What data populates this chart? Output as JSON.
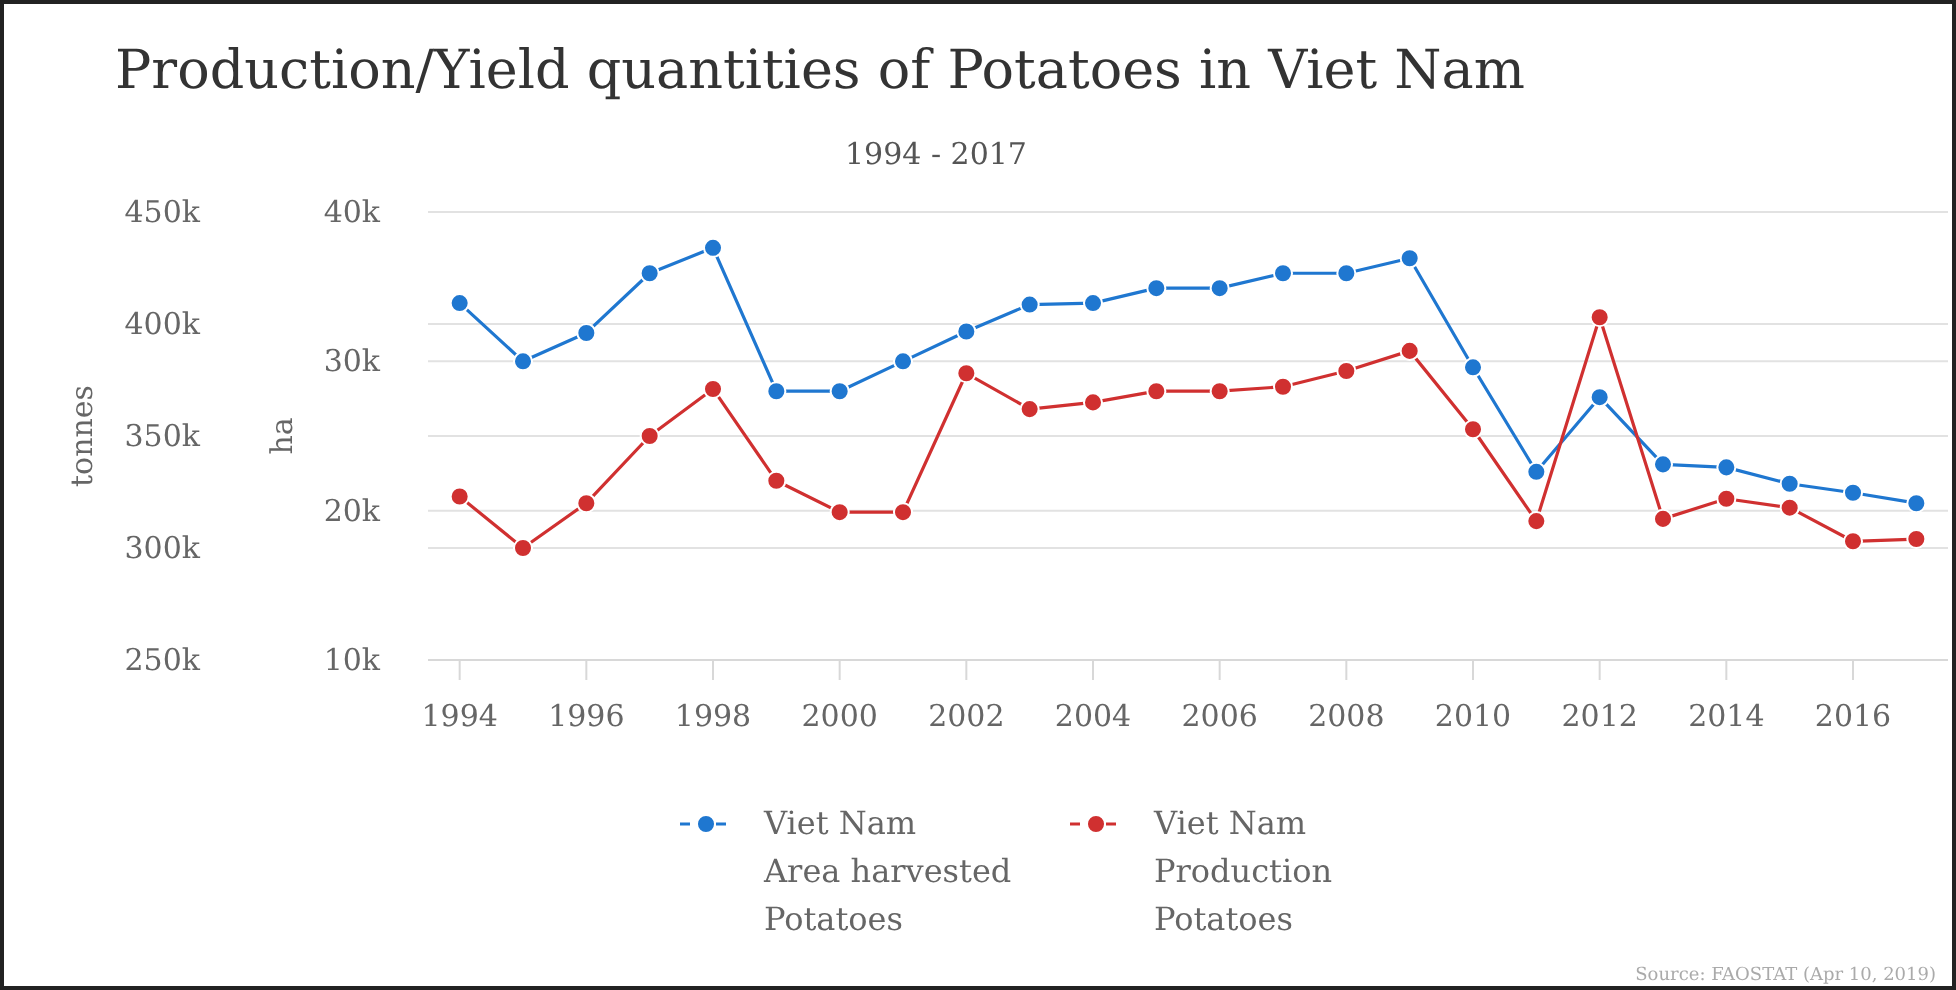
{
  "chart_data": {
    "type": "line",
    "title": "Production/Yield quantities of Potatoes in Viet Nam",
    "subtitle": "1994 - 2017",
    "ylabel": "ha",
    "y2label": "tonnes",
    "x": [
      1994,
      1995,
      1996,
      1997,
      1998,
      1999,
      2000,
      2001,
      2002,
      2003,
      2004,
      2005,
      2006,
      2007,
      2008,
      2009,
      2010,
      2011,
      2012,
      2013,
      2014,
      2015,
      2016,
      2017
    ],
    "xlim": [
      1993.5,
      2017.5
    ],
    "xticks": [
      1994,
      1996,
      1998,
      2000,
      2002,
      2004,
      2006,
      2008,
      2010,
      2012,
      2014,
      2016
    ],
    "ylim": [
      10000,
      40000
    ],
    "yticks": [
      {
        "value": 10000,
        "label": "10k"
      },
      {
        "value": 20000,
        "label": "20k"
      },
      {
        "value": 30000,
        "label": "30k"
      },
      {
        "value": 40000,
        "label": "40k"
      }
    ],
    "y2lim": [
      250000,
      450000
    ],
    "y2ticks": [
      {
        "value": 250000,
        "label": "250k"
      },
      {
        "value": 300000,
        "label": "300k"
      },
      {
        "value": 350000,
        "label": "350k"
      },
      {
        "value": 400000,
        "label": "400k"
      },
      {
        "value": 450000,
        "label": "450k"
      }
    ],
    "series": [
      {
        "name": "Viet Nam\nArea harvested\nPotatoes",
        "color": "#1f77d0",
        "values": [
          33900,
          30000,
          31900,
          35900,
          37600,
          28000,
          28000,
          30000,
          32000,
          33800,
          33900,
          34900,
          34900,
          35900,
          35900,
          36900,
          29600,
          22600,
          27600,
          23100,
          22900,
          21800,
          21200,
          20500
        ]
      },
      {
        "name": "Viet Nam\nProduction\nPotatoes",
        "color": "#d03030",
        "axis": "y2",
        "values": [
          323000,
          300000,
          320000,
          350000,
          371000,
          330000,
          316000,
          316000,
          378000,
          362000,
          365000,
          370000,
          370000,
          372000,
          379000,
          388000,
          353000,
          312000,
          403000,
          313000,
          322000,
          318000,
          303000,
          304000
        ]
      }
    ],
    "grid": "y",
    "legend": "bottom",
    "marker": "circle",
    "line_style": "solid",
    "annotations": [
      "Source: FAOSTAT (Apr 10, 2019)"
    ]
  }
}
